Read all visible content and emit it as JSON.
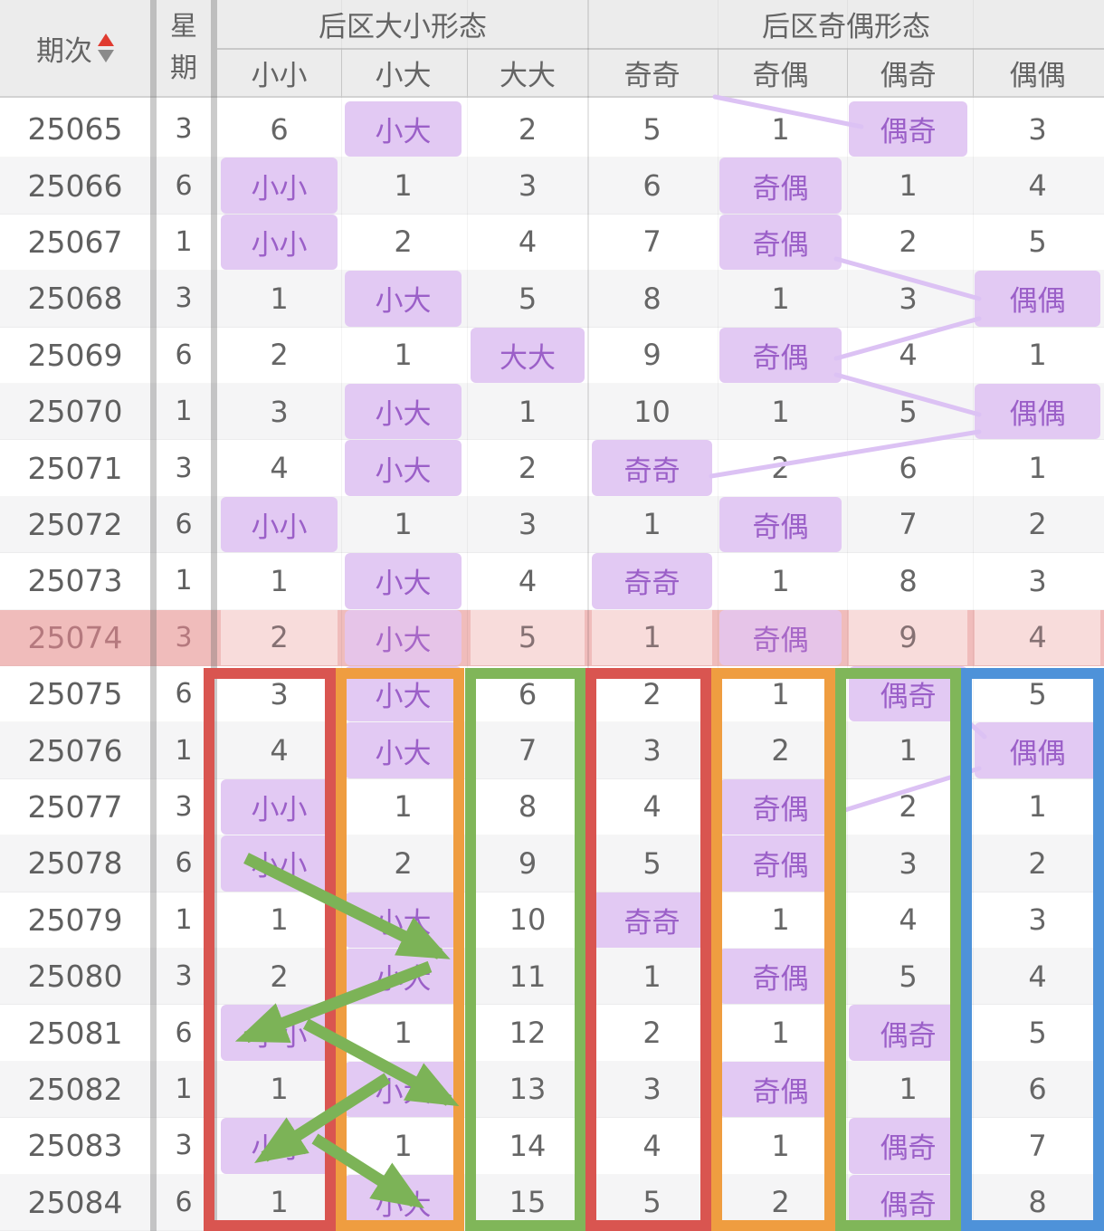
{
  "header": {
    "period": "期次",
    "week": "星期",
    "group_big_small": "后区大小形态",
    "group_odd_even": "后区奇偶形态",
    "subcolumns": [
      "小小",
      "小大",
      "大大",
      "奇奇",
      "奇偶",
      "偶奇",
      "偶偶"
    ]
  },
  "icons": {
    "sort": "sort-asc-desc"
  },
  "colors": {
    "highlight_bg": "#e2c9f3",
    "highlight_text": "#9b5fc8",
    "pink_row_bg": "#f0bcbb",
    "connector_purple": "#dcc2f4",
    "arrow_green": "#7cb357",
    "sort_up_red": "#e03b30",
    "sort_down_gray": "#8a8a8a",
    "annotation_boxes": [
      "#d95550",
      "#ef9d40",
      "#80b659",
      "#d95550",
      "#ef9d40",
      "#80b659",
      "#4e92d9"
    ]
  },
  "rows": [
    {
      "period": "25065",
      "week": "3",
      "cells": [
        "6",
        "小大",
        "2",
        "5",
        "1",
        "偶奇",
        "3"
      ],
      "hl": [
        1,
        5
      ]
    },
    {
      "period": "25066",
      "week": "6",
      "cells": [
        "小小",
        "1",
        "3",
        "6",
        "奇偶",
        "1",
        "4"
      ],
      "hl": [
        0,
        4
      ]
    },
    {
      "period": "25067",
      "week": "1",
      "cells": [
        "小小",
        "2",
        "4",
        "7",
        "奇偶",
        "2",
        "5"
      ],
      "hl": [
        0,
        4
      ]
    },
    {
      "period": "25068",
      "week": "3",
      "cells": [
        "1",
        "小大",
        "5",
        "8",
        "1",
        "3",
        "偶偶"
      ],
      "hl": [
        1,
        6
      ]
    },
    {
      "period": "25069",
      "week": "6",
      "cells": [
        "2",
        "1",
        "大大",
        "9",
        "奇偶",
        "4",
        "1"
      ],
      "hl": [
        2,
        4
      ]
    },
    {
      "period": "25070",
      "week": "1",
      "cells": [
        "3",
        "小大",
        "1",
        "10",
        "1",
        "5",
        "偶偶"
      ],
      "hl": [
        1,
        6
      ]
    },
    {
      "period": "25071",
      "week": "3",
      "cells": [
        "4",
        "小大",
        "2",
        "奇奇",
        "2",
        "6",
        "1"
      ],
      "hl": [
        1,
        3
      ]
    },
    {
      "period": "25072",
      "week": "6",
      "cells": [
        "小小",
        "1",
        "3",
        "1",
        "奇偶",
        "7",
        "2"
      ],
      "hl": [
        0,
        4
      ]
    },
    {
      "period": "25073",
      "week": "1",
      "cells": [
        "1",
        "小大",
        "4",
        "奇奇",
        "1",
        "8",
        "3"
      ],
      "hl": [
        1,
        3
      ]
    },
    {
      "period": "25074",
      "week": "3",
      "cells": [
        "2",
        "小大",
        "5",
        "1",
        "奇偶",
        "9",
        "4"
      ],
      "hl": [
        1,
        4
      ],
      "pink": true
    },
    {
      "period": "25075",
      "week": "6",
      "cells": [
        "3",
        "小大",
        "6",
        "2",
        "1",
        "偶奇",
        "5"
      ],
      "hl": [
        1,
        5
      ]
    },
    {
      "period": "25076",
      "week": "1",
      "cells": [
        "4",
        "小大",
        "7",
        "3",
        "2",
        "1",
        "偶偶"
      ],
      "hl": [
        1,
        6
      ]
    },
    {
      "period": "25077",
      "week": "3",
      "cells": [
        "小小",
        "1",
        "8",
        "4",
        "奇偶",
        "2",
        "1"
      ],
      "hl": [
        0,
        4
      ]
    },
    {
      "period": "25078",
      "week": "6",
      "cells": [
        "小小",
        "2",
        "9",
        "5",
        "奇偶",
        "3",
        "2"
      ],
      "hl": [
        0,
        4
      ]
    },
    {
      "period": "25079",
      "week": "1",
      "cells": [
        "1",
        "小大",
        "10",
        "奇奇",
        "1",
        "4",
        "3"
      ],
      "hl": [
        1,
        3
      ]
    },
    {
      "period": "25080",
      "week": "3",
      "cells": [
        "2",
        "小大",
        "11",
        "1",
        "奇偶",
        "5",
        "4"
      ],
      "hl": [
        1,
        4
      ]
    },
    {
      "period": "25081",
      "week": "6",
      "cells": [
        "小小",
        "1",
        "12",
        "2",
        "1",
        "偶奇",
        "5"
      ],
      "hl": [
        0,
        5
      ]
    },
    {
      "period": "25082",
      "week": "1",
      "cells": [
        "1",
        "小大",
        "13",
        "3",
        "奇偶",
        "1",
        "6"
      ],
      "hl": [
        1,
        4
      ]
    },
    {
      "period": "25083",
      "week": "3",
      "cells": [
        "小小",
        "1",
        "14",
        "4",
        "1",
        "偶奇",
        "7"
      ],
      "hl": [
        0,
        5
      ]
    },
    {
      "period": "25084",
      "week": "6",
      "cells": [
        "1",
        "小大",
        "15",
        "5",
        "2",
        "偶奇",
        "8"
      ],
      "hl": [
        1,
        5
      ]
    }
  ]
}
